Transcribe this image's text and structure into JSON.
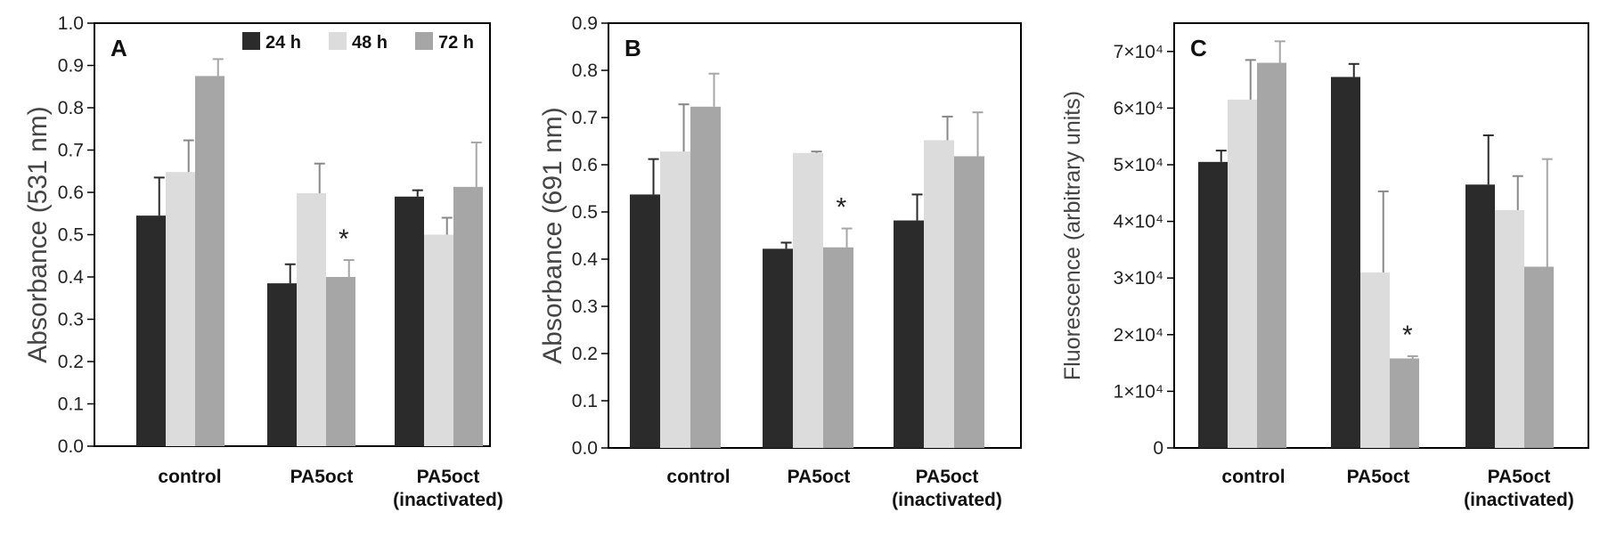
{
  "colors": {
    "h24": "#2b2b2b",
    "h48": "#dcdcdc",
    "h72": "#a6a6a6",
    "axis": "#000000"
  },
  "legend": {
    "items": [
      "24 h",
      "48 h",
      "72 h"
    ],
    "placement": "top-center of panel A"
  },
  "chart_data": [
    {
      "type": "bar",
      "panel_label": "A",
      "ylabel": "Absorbance (531 nm)",
      "ylim": [
        0,
        1.0
      ],
      "yticks": [
        "0.0",
        "0.1",
        "0.2",
        "0.3",
        "0.4",
        "0.5",
        "0.6",
        "0.7",
        "0.8",
        "0.9",
        "1.0"
      ],
      "yticks_values": [
        0,
        0.1,
        0.2,
        0.3,
        0.4,
        0.5,
        0.6,
        0.7,
        0.8,
        0.9,
        1.0
      ],
      "categories": [
        [
          "control"
        ],
        [
          "PA5oct"
        ],
        [
          "PA5oct",
          "(inactivated)"
        ]
      ],
      "series": [
        {
          "name": "24 h",
          "values": [
            0.545,
            0.385,
            0.59
          ],
          "errors": [
            0.09,
            0.045,
            0.015
          ]
        },
        {
          "name": "48 h",
          "values": [
            0.648,
            0.598,
            0.5
          ],
          "errors": [
            0.075,
            0.07,
            0.04
          ]
        },
        {
          "name": "72 h",
          "values": [
            0.875,
            0.4,
            0.613
          ],
          "errors": [
            0.04,
            0.04,
            0.105
          ]
        }
      ],
      "annotations": [
        {
          "text": "*",
          "category_index": 1,
          "series_index": 2
        }
      ],
      "grid": false
    },
    {
      "type": "bar",
      "panel_label": "B",
      "ylabel": "Absorbance (691 nm)",
      "ylim": [
        0,
        0.9
      ],
      "yticks": [
        "0.0",
        "0.1",
        "0.2",
        "0.3",
        "0.4",
        "0.5",
        "0.6",
        "0.7",
        "0.8",
        "0.9"
      ],
      "yticks_values": [
        0,
        0.1,
        0.2,
        0.3,
        0.4,
        0.5,
        0.6,
        0.7,
        0.8,
        0.9
      ],
      "categories": [
        [
          "control"
        ],
        [
          "PA5oct"
        ],
        [
          "PA5oct",
          "(inactivated)"
        ]
      ],
      "series": [
        {
          "name": "24 h",
          "values": [
            0.537,
            0.422,
            0.482
          ],
          "errors": [
            0.075,
            0.013,
            0.055
          ]
        },
        {
          "name": "48 h",
          "values": [
            0.628,
            0.625,
            0.652
          ],
          "errors": [
            0.1,
            0.003,
            0.05
          ]
        },
        {
          "name": "72 h",
          "values": [
            0.723,
            0.425,
            0.618
          ],
          "errors": [
            0.07,
            0.04,
            0.093
          ]
        }
      ],
      "annotations": [
        {
          "text": "*",
          "category_index": 1,
          "series_index": 2
        }
      ],
      "grid": false
    },
    {
      "type": "bar",
      "panel_label": "C",
      "ylabel": "Fluorescence (arbitrary units)",
      "ylim": [
        0,
        75000
      ],
      "yticks": [
        "0",
        "1×10⁴",
        "2×10⁴",
        "3×10⁴",
        "4×10⁴",
        "5×10⁴",
        "6×10⁴",
        "7×10⁴"
      ],
      "yticks_values": [
        0,
        10000,
        20000,
        30000,
        40000,
        50000,
        60000,
        70000
      ],
      "categories": [
        [
          "control"
        ],
        [
          "PA5oct"
        ],
        [
          "PA5oct",
          "(inactivated)"
        ]
      ],
      "series": [
        {
          "name": "24 h",
          "values": [
            50500,
            65500,
            46500
          ],
          "errors": [
            2000,
            2300,
            8700
          ]
        },
        {
          "name": "48 h",
          "values": [
            61500,
            31000,
            42000
          ],
          "errors": [
            7000,
            14300,
            6000
          ]
        },
        {
          "name": "72 h",
          "values": [
            68000,
            15800,
            32000
          ],
          "errors": [
            3800,
            400,
            19000
          ]
        }
      ],
      "annotations": [
        {
          "text": "*",
          "category_index": 1,
          "series_index": 2
        }
      ],
      "grid": false
    }
  ]
}
